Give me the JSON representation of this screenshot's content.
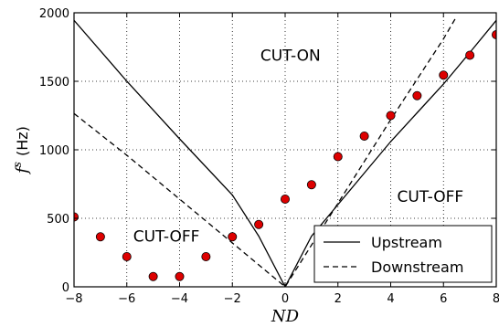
{
  "chart_data": {
    "type": "line",
    "xlabel": "ND",
    "ylabel_symbol": "f",
    "ylabel_superscript": "s",
    "ylabel_unit": "(Hz)",
    "xlim": [
      -8,
      8
    ],
    "ylim": [
      0,
      2000
    ],
    "xticks": [
      -8,
      -6,
      -4,
      -2,
      0,
      2,
      4,
      6,
      8
    ],
    "yticks": [
      0,
      500,
      1000,
      1500,
      2000
    ],
    "grid": true,
    "legend_position": "lower-right",
    "series": [
      {
        "name": "Upstream",
        "style": "solid",
        "color": "#000000",
        "x": [
          -8,
          -6,
          -4,
          -2,
          -1,
          0,
          1,
          2,
          3,
          4,
          5,
          6,
          7,
          8
        ],
        "y": [
          1945,
          1500,
          1080,
          670,
          370,
          0,
          370,
          600,
          830,
          1060,
          1270,
          1480,
          1710,
          1945
        ]
      },
      {
        "name": "Downstream",
        "style": "dashed",
        "color": "#000000",
        "x": [
          -8,
          -6,
          -4,
          -2,
          0,
          2,
          4,
          6,
          6.5
        ],
        "y": [
          1265,
          960,
          640,
          320,
          0,
          610,
          1220,
          1810,
          1975
        ]
      },
      {
        "style": "markers",
        "color": "#dd0000",
        "x": [
          -8,
          -7,
          -6,
          -5,
          -4,
          -3,
          -2,
          -1,
          0,
          1,
          2,
          3,
          4,
          5,
          6,
          7,
          8
        ],
        "y": [
          510,
          365,
          220,
          75,
          75,
          220,
          365,
          455,
          640,
          745,
          950,
          1100,
          1250,
          1395,
          1545,
          1690,
          1840
        ]
      }
    ],
    "annotations": [
      {
        "text": "CUT-ON",
        "x": 0.2,
        "y": 1650
      },
      {
        "text": "CUT-OFF",
        "x": 5.5,
        "y": 620
      },
      {
        "text": "CUT-OFF",
        "x": -4.5,
        "y": 330
      }
    ]
  }
}
